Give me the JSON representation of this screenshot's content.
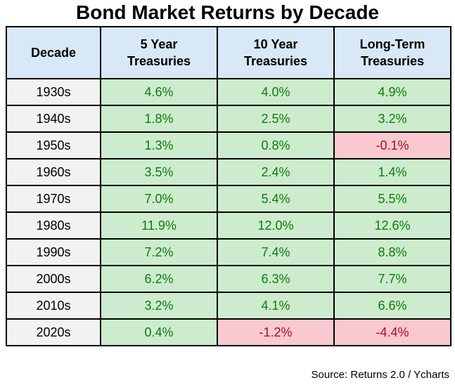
{
  "title": "Bond Market Returns by Decade",
  "source": "Source: Returns 2.0 / Ycharts",
  "colors": {
    "header_bg": "#d9e8f6",
    "decade_bg": "#f2f2f2",
    "positive_bg": "#cdeccd",
    "positive_text": "#0f7a0f",
    "negative_bg": "#fac8d0",
    "negative_text": "#a80d28",
    "border": "#000000"
  },
  "chart_data": {
    "type": "table",
    "title": "Bond Market Returns by Decade",
    "columns": [
      "Decade",
      "5 Year\nTreasuries",
      "10 Year\nTreasuries",
      "Long-Term\nTreasuries"
    ],
    "rows": [
      {
        "decade": "1930s",
        "values": [
          "4.6%",
          "4.0%",
          "4.9%"
        ]
      },
      {
        "decade": "1940s",
        "values": [
          "1.8%",
          "2.5%",
          "3.2%"
        ]
      },
      {
        "decade": "1950s",
        "values": [
          "1.3%",
          "0.8%",
          "-0.1%"
        ]
      },
      {
        "decade": "1960s",
        "values": [
          "3.5%",
          "2.4%",
          "1.4%"
        ]
      },
      {
        "decade": "1970s",
        "values": [
          "7.0%",
          "5.4%",
          "5.5%"
        ]
      },
      {
        "decade": "1980s",
        "values": [
          "11.9%",
          "12.0%",
          "12.6%"
        ]
      },
      {
        "decade": "1990s",
        "values": [
          "7.2%",
          "7.4%",
          "8.8%"
        ]
      },
      {
        "decade": "2000s",
        "values": [
          "6.2%",
          "6.3%",
          "7.7%"
        ]
      },
      {
        "decade": "2010s",
        "values": [
          "3.2%",
          "4.1%",
          "6.6%"
        ]
      },
      {
        "decade": "2020s",
        "values": [
          "0.4%",
          "-1.2%",
          "-4.4%"
        ]
      }
    ],
    "source": "Source: Returns 2.0 / Ycharts"
  }
}
